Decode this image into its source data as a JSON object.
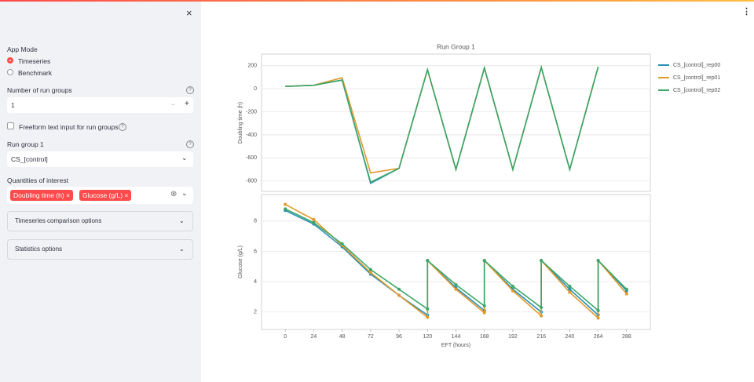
{
  "sidebar": {
    "app_mode": {
      "label": "App Mode",
      "options": [
        "Timeseries",
        "Benchmark"
      ]
    },
    "run_groups": {
      "label": "Number of run groups",
      "value": 1
    },
    "freeform": "Freeform text input for run groups",
    "run_group_1": {
      "label": "Run group 1",
      "value": "CS_[control]"
    },
    "quantities": {
      "label": "Quantities of interest",
      "tags": [
        "Doubling time (h)",
        "Glucose (g/L)"
      ]
    },
    "expanders": [
      "Timeseries comparison options",
      "Statistics options"
    ]
  },
  "chart_data": [
    {
      "type": "line",
      "title": "Run Group 1",
      "y_label": "Doubling time (h)",
      "x": [
        0,
        24,
        48,
        72,
        96,
        120,
        144,
        168,
        192,
        216,
        240,
        264
      ],
      "xlim": [
        -20,
        308
      ],
      "ylim": [
        -890,
        300
      ],
      "yticks": [
        -800,
        -600,
        -400,
        -200,
        0,
        200
      ],
      "grid": true,
      "markers": false,
      "series": [
        {
          "name": "CS_[control]_rep00",
          "color": "#2a8fb8",
          "values": [
            20,
            30,
            75,
            -820,
            -690,
            165,
            -700,
            180,
            -700,
            185,
            -700,
            190
          ]
        },
        {
          "name": "CS_[control]_rep01",
          "color": "#e09a2c",
          "values": [
            20,
            30,
            95,
            -730,
            -690,
            165,
            -700,
            180,
            -700,
            185,
            -700,
            190
          ]
        },
        {
          "name": "CS_[control]_rep02",
          "color": "#3ca768",
          "values": [
            20,
            30,
            75,
            -810,
            -690,
            165,
            -700,
            180,
            -700,
            185,
            -700,
            190
          ]
        }
      ]
    },
    {
      "type": "line",
      "x_label": "EFT (hours)",
      "y_label": "Glucose (g/L)",
      "x": [
        0,
        24,
        48,
        72,
        96,
        120,
        120,
        144,
        168,
        168,
        192,
        216,
        216,
        240,
        264,
        264,
        288
      ],
      "xlim": [
        -20,
        308
      ],
      "xticks": [
        0,
        24,
        48,
        72,
        96,
        120,
        144,
        168,
        192,
        216,
        240,
        264,
        288
      ],
      "ylim": [
        0.85,
        9.75
      ],
      "yticks": [
        2,
        4,
        6,
        8
      ],
      "grid": true,
      "markers": true,
      "series": [
        {
          "color": "#2a8fb8",
          "values": [
            8.7,
            7.8,
            6.3,
            4.5,
            3.1,
            1.8,
            5.4,
            3.6,
            2.1,
            5.4,
            3.5,
            2.0,
            5.4,
            3.5,
            1.8,
            5.4,
            3.4
          ]
        },
        {
          "color": "#e09a2c",
          "values": [
            9.1,
            8.1,
            6.4,
            4.6,
            3.1,
            1.65,
            5.4,
            3.5,
            1.95,
            5.4,
            3.4,
            1.75,
            5.4,
            3.3,
            1.6,
            5.4,
            3.2
          ]
        },
        {
          "color": "#3ca768",
          "values": [
            8.8,
            7.9,
            6.5,
            4.8,
            3.5,
            2.2,
            5.4,
            3.8,
            2.4,
            5.4,
            3.7,
            2.3,
            5.4,
            3.7,
            2.1,
            5.4,
            3.5
          ]
        }
      ]
    }
  ]
}
